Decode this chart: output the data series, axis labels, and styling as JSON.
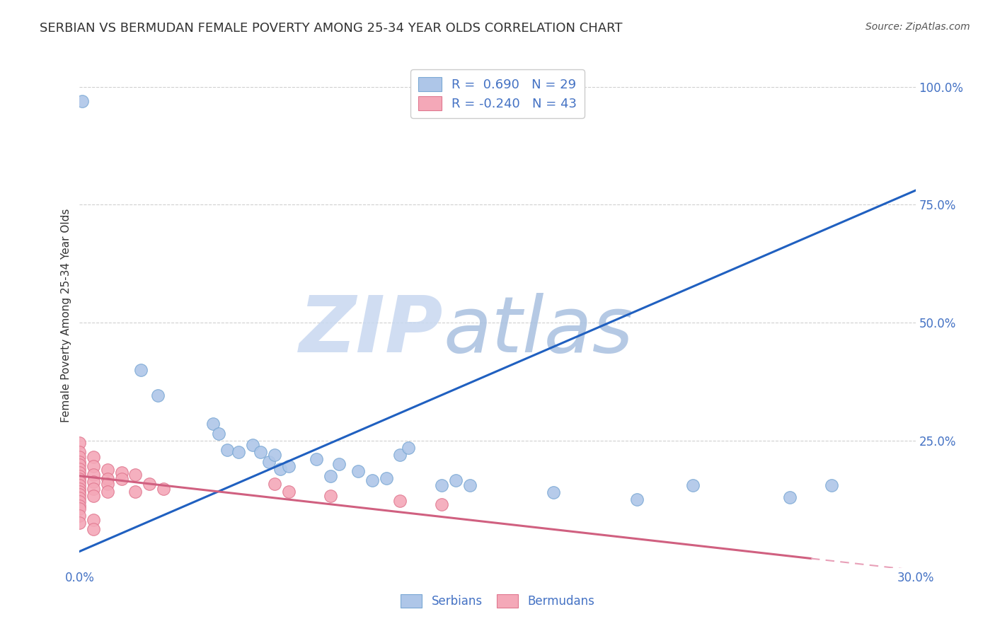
{
  "title": "SERBIAN VS BERMUDAN FEMALE POVERTY AMONG 25-34 YEAR OLDS CORRELATION CHART",
  "source": "Source: ZipAtlas.com",
  "ylabel": "Female Poverty Among 25-34 Year Olds",
  "xlim": [
    0.0,
    0.3
  ],
  "ylim": [
    -0.02,
    1.05
  ],
  "y_tick_positions": [
    0.25,
    0.5,
    0.75,
    1.0
  ],
  "y_tick_labels": [
    "25.0%",
    "50.0%",
    "75.0%",
    "100.0%"
  ],
  "x_tick_positions": [
    0.0,
    0.3
  ],
  "x_tick_labels": [
    "0.0%",
    "30.0%"
  ],
  "title_color": "#333333",
  "source_color": "#555555",
  "ylabel_color": "#333333",
  "tick_color": "#4472c4",
  "serbian_color": "#aec6e8",
  "bermudan_color": "#f4a8b8",
  "serbian_edge_color": "#7aa8d4",
  "bermudan_edge_color": "#e07890",
  "serbian_line_color": "#2060c0",
  "bermudan_line_solid_color": "#d06080",
  "bermudan_line_dashed_color": "#e8a0b8",
  "grid_color": "#d0d0d0",
  "background_color": "#ffffff",
  "legend_serbian_label": "R =  0.690   N = 29",
  "legend_bermudan_label": "R = -0.240   N = 43",
  "bottom_legend_serbian": "Serbians",
  "bottom_legend_bermudan": "Bermudans",
  "serbian_line_x0": 0.0,
  "serbian_line_y0": 0.015,
  "serbian_line_x1": 0.3,
  "serbian_line_y1": 0.78,
  "bermudan_line_x0": 0.0,
  "bermudan_line_y0": 0.175,
  "bermudan_line_x1": 0.3,
  "bermudan_line_y1": -0.025,
  "serbian_points": [
    [
      0.001,
      0.97
    ],
    [
      0.022,
      0.4
    ],
    [
      0.028,
      0.345
    ],
    [
      0.048,
      0.285
    ],
    [
      0.05,
      0.265
    ],
    [
      0.053,
      0.23
    ],
    [
      0.057,
      0.225
    ],
    [
      0.062,
      0.24
    ],
    [
      0.065,
      0.225
    ],
    [
      0.068,
      0.205
    ],
    [
      0.07,
      0.22
    ],
    [
      0.072,
      0.19
    ],
    [
      0.075,
      0.195
    ],
    [
      0.085,
      0.21
    ],
    [
      0.09,
      0.175
    ],
    [
      0.093,
      0.2
    ],
    [
      0.1,
      0.185
    ],
    [
      0.105,
      0.165
    ],
    [
      0.11,
      0.17
    ],
    [
      0.115,
      0.22
    ],
    [
      0.118,
      0.235
    ],
    [
      0.13,
      0.155
    ],
    [
      0.135,
      0.165
    ],
    [
      0.14,
      0.155
    ],
    [
      0.17,
      0.14
    ],
    [
      0.2,
      0.125
    ],
    [
      0.22,
      0.155
    ],
    [
      0.255,
      0.13
    ],
    [
      0.27,
      0.155
    ]
  ],
  "bermudan_points": [
    [
      0.0,
      0.245
    ],
    [
      0.0,
      0.225
    ],
    [
      0.0,
      0.215
    ],
    [
      0.0,
      0.205
    ],
    [
      0.0,
      0.198
    ],
    [
      0.0,
      0.19
    ],
    [
      0.0,
      0.182
    ],
    [
      0.0,
      0.175
    ],
    [
      0.0,
      0.168
    ],
    [
      0.0,
      0.162
    ],
    [
      0.0,
      0.155
    ],
    [
      0.0,
      0.148
    ],
    [
      0.0,
      0.142
    ],
    [
      0.0,
      0.135
    ],
    [
      0.0,
      0.128
    ],
    [
      0.0,
      0.12
    ],
    [
      0.0,
      0.112
    ],
    [
      0.0,
      0.105
    ],
    [
      0.0,
      0.09
    ],
    [
      0.0,
      0.075
    ],
    [
      0.005,
      0.215
    ],
    [
      0.005,
      0.195
    ],
    [
      0.005,
      0.178
    ],
    [
      0.005,
      0.162
    ],
    [
      0.005,
      0.148
    ],
    [
      0.005,
      0.132
    ],
    [
      0.005,
      0.082
    ],
    [
      0.005,
      0.062
    ],
    [
      0.01,
      0.188
    ],
    [
      0.01,
      0.168
    ],
    [
      0.01,
      0.158
    ],
    [
      0.01,
      0.142
    ],
    [
      0.015,
      0.182
    ],
    [
      0.015,
      0.168
    ],
    [
      0.02,
      0.178
    ],
    [
      0.02,
      0.142
    ],
    [
      0.025,
      0.158
    ],
    [
      0.03,
      0.148
    ],
    [
      0.07,
      0.158
    ],
    [
      0.075,
      0.142
    ],
    [
      0.09,
      0.132
    ],
    [
      0.115,
      0.122
    ],
    [
      0.13,
      0.115
    ]
  ]
}
